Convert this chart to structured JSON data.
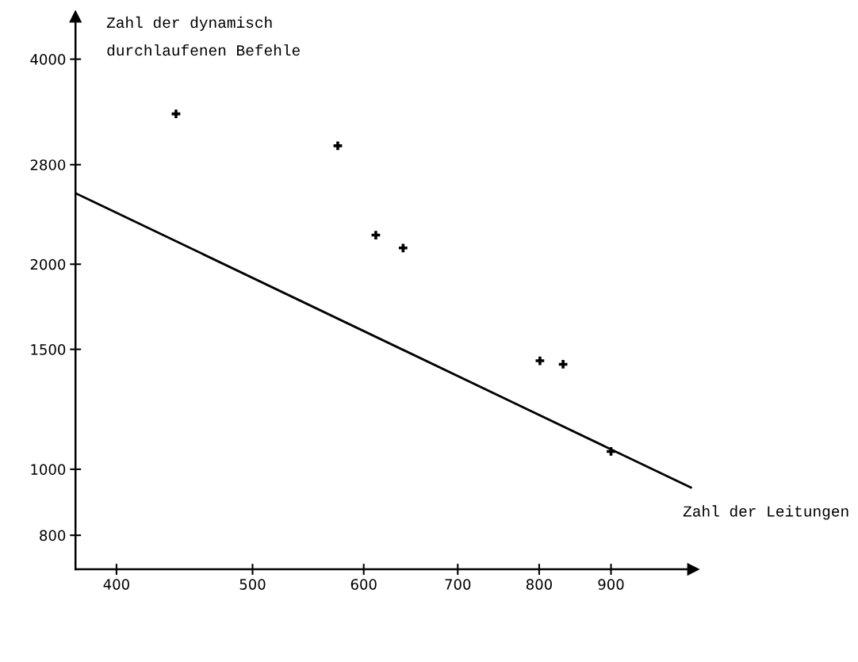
{
  "chart_data": {
    "type": "scatter",
    "xlabel": "Zahl der Leitungen",
    "ylabel": "Zahl der dynamisch\ndurchlaufenen Befehle",
    "log": "xy",
    "marker": "cross",
    "grid": false,
    "legend": false,
    "xlim": [
      374,
      1030
    ],
    "ylim": [
      713,
      4620
    ],
    "xticks": [
      400,
      500,
      600,
      700,
      800,
      900
    ],
    "yticks": [
      800,
      1000,
      1500,
      2000,
      2800,
      4000
    ],
    "series": [
      {
        "color": "#000000",
        "x": [
          441,
          575,
          612,
          640,
          801,
          832,
          900
        ],
        "values": [
          3325,
          2985,
          2207,
          2113,
          1443,
          1426,
          1062
        ]
      },
      {
        "type": "line",
        "color": "#000000",
        "marker": "none",
        "x": [
          374,
          1026
        ],
        "values": [
          2543,
          940
        ]
      }
    ]
  }
}
